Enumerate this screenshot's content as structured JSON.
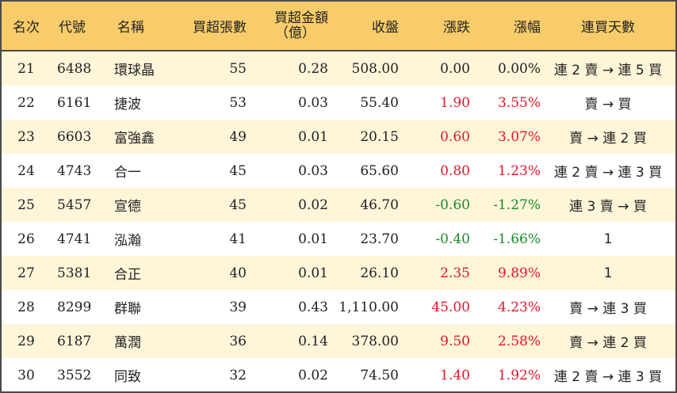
{
  "headers": {
    "rank": "名次",
    "code": "代號",
    "name": "名稱",
    "shares": "買超張數",
    "amount_line1": "買超金額",
    "amount_line2": "（億）",
    "close": "收盤",
    "change": "漲跌",
    "change_pct": "漲幅",
    "consecutive_days": "連買天數"
  },
  "rows": [
    {
      "rank": "21",
      "code": "6488",
      "name": "環球晶",
      "shares": "55",
      "amount": "0.28",
      "close": "508.00",
      "change": "0.00",
      "change_pct": "0.00%",
      "trend": "flat",
      "days": "連 2 賣 → 連 5 買"
    },
    {
      "rank": "22",
      "code": "6161",
      "name": "捷波",
      "shares": "53",
      "amount": "0.03",
      "close": "55.40",
      "change": "1.90",
      "change_pct": "3.55%",
      "trend": "up",
      "days": "賣 → 買"
    },
    {
      "rank": "23",
      "code": "6603",
      "name": "富強鑫",
      "shares": "49",
      "amount": "0.01",
      "close": "20.15",
      "change": "0.60",
      "change_pct": "3.07%",
      "trend": "up",
      "days": "賣 → 連 2 買"
    },
    {
      "rank": "24",
      "code": "4743",
      "name": "合一",
      "shares": "45",
      "amount": "0.03",
      "close": "65.60",
      "change": "0.80",
      "change_pct": "1.23%",
      "trend": "up",
      "days": "連 2 賣 → 連 3 買"
    },
    {
      "rank": "25",
      "code": "5457",
      "name": "宣德",
      "shares": "45",
      "amount": "0.02",
      "close": "46.70",
      "change": "-0.60",
      "change_pct": "-1.27%",
      "trend": "down",
      "days": "連 3 賣 → 買"
    },
    {
      "rank": "26",
      "code": "4741",
      "name": "泓瀚",
      "shares": "41",
      "amount": "0.01",
      "close": "23.70",
      "change": "-0.40",
      "change_pct": "-1.66%",
      "trend": "down",
      "days": "1"
    },
    {
      "rank": "27",
      "code": "5381",
      "name": "合正",
      "shares": "40",
      "amount": "0.01",
      "close": "26.10",
      "change": "2.35",
      "change_pct": "9.89%",
      "trend": "up",
      "days": "1"
    },
    {
      "rank": "28",
      "code": "8299",
      "name": "群聯",
      "shares": "39",
      "amount": "0.43",
      "close": "1,110.00",
      "change": "45.00",
      "change_pct": "4.23%",
      "trend": "up",
      "days": "賣 → 連 3 買"
    },
    {
      "rank": "29",
      "code": "6187",
      "name": "萬潤",
      "shares": "36",
      "amount": "0.14",
      "close": "378.00",
      "change": "9.50",
      "change_pct": "2.58%",
      "trend": "up",
      "days": "賣 → 連 2 買"
    },
    {
      "rank": "30",
      "code": "3552",
      "name": "同致",
      "shares": "32",
      "amount": "0.02",
      "close": "74.50",
      "change": "1.40",
      "change_pct": "1.92%",
      "trend": "up",
      "days": "連 2 賣 → 連 3 買"
    }
  ],
  "colors": {
    "header_bg": "#f8cc6a",
    "alt_row_bg": "#fff5d9",
    "up": "#e3162b",
    "down": "#1a8a2a"
  }
}
